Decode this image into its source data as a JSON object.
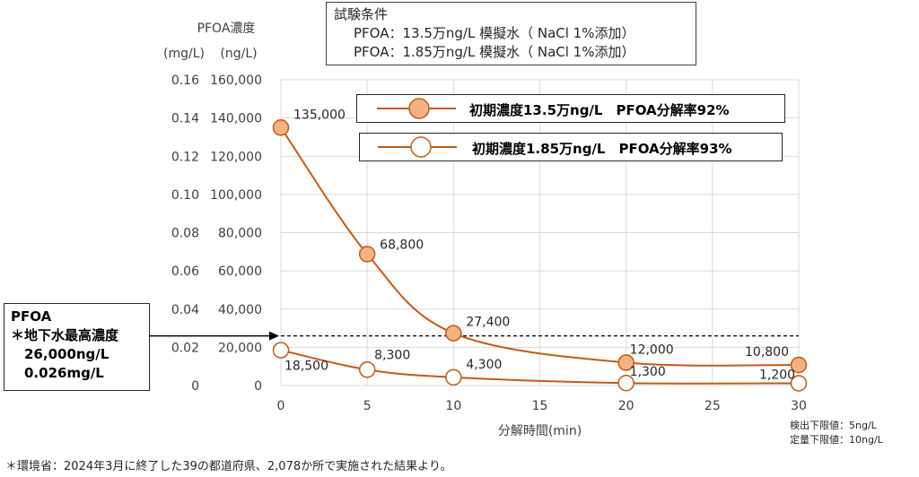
{
  "conditions": {
    "title": "試験条件",
    "lines": [
      "PFOA：13.5万ng/L 模擬水（ NaCl 1%添加）",
      "PFOA：1.85万ng/L 模擬水（ NaCl 1%添加）"
    ]
  },
  "pfoa_box": {
    "lines": [
      "PFOA",
      "＊地下水最高濃度",
      "26,000ng/L",
      "0.026mg/L"
    ]
  },
  "footnote": "＊環境省：2024年3月に終了した39の都道府県、2,078か所で実施された結果より。",
  "detection_limits": [
    "検出下限値：5ng/L",
    "定量下限値：10ng/L"
  ],
  "colors": {
    "line": "#c55a11",
    "marker_fill": "#f4b183",
    "grid": "#d9d9d9",
    "dash": "#000000"
  },
  "chart_data": {
    "type": "line",
    "y_axis_title": "PFOA濃度",
    "y_unit_left": "(mg/L)",
    "y_unit_right": "(ng/L)",
    "xlabel": "分解時間(min)",
    "xlim": [
      0,
      30
    ],
    "ylim": [
      0,
      160000
    ],
    "x_ticks": [
      0,
      5,
      10,
      15,
      20,
      25,
      30
    ],
    "y_ticks": [
      {
        "ng": 0,
        "label_ng": "0",
        "label_mg": "0"
      },
      {
        "ng": 20000,
        "label_ng": "20,000",
        "label_mg": "0.02"
      },
      {
        "ng": 40000,
        "label_ng": "40,000",
        "label_mg": "0.04"
      },
      {
        "ng": 60000,
        "label_ng": "60,000",
        "label_mg": "0.06"
      },
      {
        "ng": 80000,
        "label_ng": "80,000",
        "label_mg": "0.08"
      },
      {
        "ng": 100000,
        "label_ng": "100,000",
        "label_mg": "0.10"
      },
      {
        "ng": 120000,
        "label_ng": "120,000",
        "label_mg": "0.12"
      },
      {
        "ng": 140000,
        "label_ng": "140,000",
        "label_mg": "0.14"
      },
      {
        "ng": 160000,
        "label_ng": "160,000",
        "label_mg": "0.16"
      }
    ],
    "reference_line": 26000,
    "series": [
      {
        "name": "初期濃度13.5万ng/L　PFOA分解率92%",
        "marker": "filled",
        "points": [
          {
            "x": 0,
            "y": 135000,
            "label": "135,000"
          },
          {
            "x": 5,
            "y": 68800,
            "label": "68,800"
          },
          {
            "x": 10,
            "y": 27400,
            "label": "27,400"
          },
          {
            "x": 20,
            "y": 12000,
            "label": "12,000"
          },
          {
            "x": 30,
            "y": 10800,
            "label": "10,800"
          }
        ]
      },
      {
        "name": "初期濃度1.85万ng/L　PFOA分解率93%",
        "marker": "hollow",
        "points": [
          {
            "x": 0,
            "y": 18500,
            "label": "18,500"
          },
          {
            "x": 5,
            "y": 8300,
            "label": "8,300"
          },
          {
            "x": 10,
            "y": 4300,
            "label": "4,300"
          },
          {
            "x": 20,
            "y": 1300,
            "label": "1,300"
          },
          {
            "x": 30,
            "y": 1200,
            "label": "1,200"
          }
        ]
      }
    ]
  }
}
